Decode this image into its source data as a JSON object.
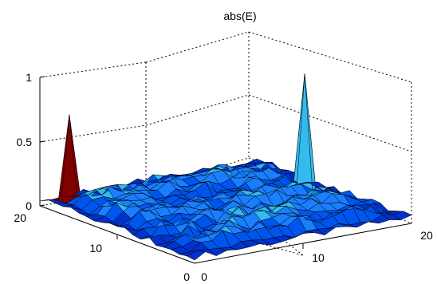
{
  "chart_data": {
    "type": "surface",
    "title": "abs(E)",
    "xlabel": "",
    "ylabel": "",
    "zlabel": "",
    "xlim": [
      0,
      20
    ],
    "ylim": [
      0,
      20
    ],
    "zlim": [
      0,
      1
    ],
    "x_ticks": [
      "0",
      "10",
      "20"
    ],
    "y_ticks": [
      "0",
      "10",
      "20"
    ],
    "z_ticks": [
      "0",
      "0.5",
      "1"
    ],
    "grid": true,
    "box": "dotted",
    "colormap": [
      "#000080",
      "#0033cc",
      "#0055ee",
      "#1a7fff",
      "#33bbee",
      "#800000"
    ],
    "peaks": [
      {
        "x": 2,
        "y": 19,
        "value": 0.7,
        "color": "#800000"
      },
      {
        "x": 18,
        "y": 11,
        "value": 0.95,
        "color": "#33bbee"
      }
    ],
    "baseline_level": 0.12
  }
}
